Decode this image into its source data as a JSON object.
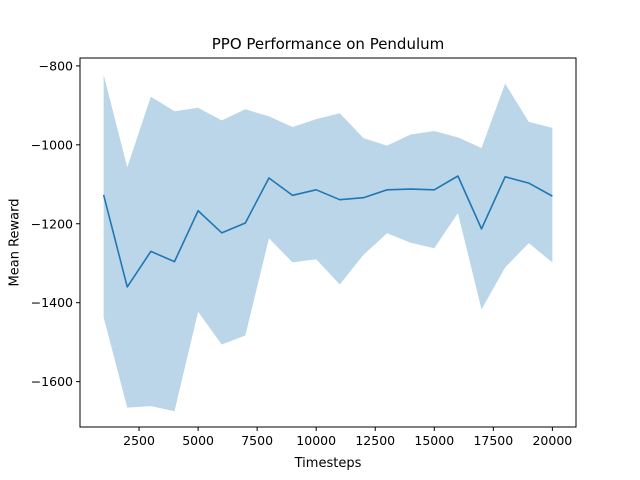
{
  "chart_data": {
    "type": "line",
    "title": "PPO Performance on Pendulum",
    "xlabel": "Timesteps",
    "ylabel": "Mean Reward",
    "xlim": [
      0,
      21000
    ],
    "ylim": [
      -1715,
      -780
    ],
    "xticks": [
      2500,
      5000,
      7500,
      10000,
      12500,
      15000,
      17500,
      20000
    ],
    "xtick_labels": [
      "2500",
      "5000",
      "7500",
      "10000",
      "12500",
      "15000",
      "17500",
      "20000"
    ],
    "yticks": [
      -1600,
      -1400,
      -1200,
      -1000,
      -800
    ],
    "ytick_labels": [
      "−1600",
      "−1400",
      "−1200",
      "−1000",
      "−800"
    ],
    "grid": false,
    "series": [
      {
        "color": "#1f77b4",
        "band_color": "#1f77b4",
        "x": [
          1000,
          2000,
          3000,
          4000,
          5000,
          6000,
          7000,
          8000,
          9000,
          10000,
          11000,
          12000,
          13000,
          14000,
          15000,
          16000,
          17000,
          18000,
          19000,
          20000
        ],
        "y": [
          -1127,
          -1360,
          -1270,
          -1296,
          -1167,
          -1223,
          -1198,
          -1084,
          -1128,
          -1114,
          -1139,
          -1134,
          -1114,
          -1112,
          -1114,
          -1079,
          -1213,
          -1081,
          -1097,
          -1130
        ],
        "upper": [
          -822,
          -1057,
          -878,
          -915,
          -906,
          -938,
          -910,
          -928,
          -955,
          -935,
          -920,
          -983,
          -1002,
          -974,
          -965,
          -981,
          -1008,
          -845,
          -942,
          -957
        ],
        "lower": [
          -1437,
          -1666,
          -1662,
          -1675,
          -1423,
          -1506,
          -1483,
          -1237,
          -1298,
          -1290,
          -1354,
          -1279,
          -1224,
          -1248,
          -1262,
          -1173,
          -1417,
          -1311,
          -1249,
          -1298
        ]
      }
    ]
  }
}
